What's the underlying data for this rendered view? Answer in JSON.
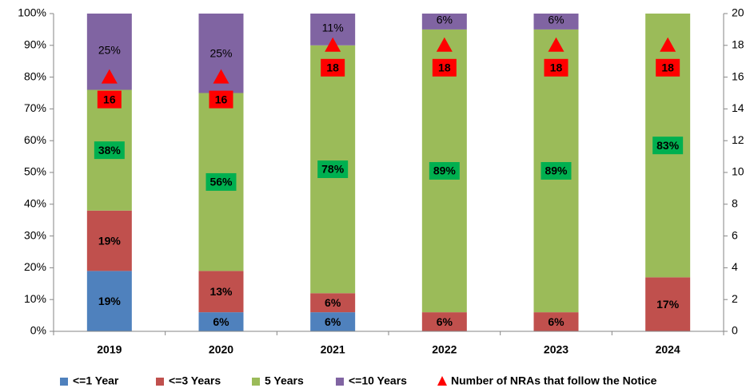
{
  "chart_data": {
    "type": "stacked_bar",
    "categories": [
      "2019",
      "2020",
      "2021",
      "2022",
      "2023",
      "2024"
    ],
    "series": [
      {
        "name": "<=1 Year",
        "color": "#4f81bd",
        "values": [
          19,
          6,
          6,
          null,
          null,
          null
        ],
        "value_labels": [
          "19%",
          "6%",
          "6%",
          null,
          null,
          null
        ]
      },
      {
        "name": "<=3 Years",
        "color": "#c0504d",
        "values": [
          19,
          13,
          6,
          6,
          6,
          17
        ],
        "value_labels": [
          "19%",
          "13%",
          "6%",
          "6%",
          "6%",
          "17%"
        ]
      },
      {
        "name": "5 Years",
        "color": "#9bbb59",
        "values": [
          38,
          56,
          78,
          89,
          89,
          83
        ],
        "value_labels": [
          "38%",
          "56%",
          "78%",
          "89%",
          "89%",
          "83%"
        ]
      },
      {
        "name": "<=10 Years",
        "color": "#8064a2",
        "values": [
          25,
          25,
          11,
          6,
          6,
          null
        ],
        "value_labels": [
          "25%",
          "25%",
          "11%",
          "6%",
          "6%",
          null
        ]
      },
      {
        "name": "Number of NRAs that follow the Notice",
        "color": "#ff0000",
        "axis": "y2",
        "marker": "triangle",
        "values": [
          16,
          16,
          18,
          18,
          18,
          18
        ]
      }
    ],
    "ylim": [
      0,
      100
    ],
    "yticks": [
      {
        "value": 0,
        "label": "0%"
      },
      {
        "value": 10,
        "label": "10%"
      },
      {
        "value": 20,
        "label": "20%"
      },
      {
        "value": 30,
        "label": "30%"
      },
      {
        "value": 40,
        "label": "40%"
      },
      {
        "value": 50,
        "label": "50%"
      },
      {
        "value": 60,
        "label": "60%"
      },
      {
        "value": 70,
        "label": "70%"
      },
      {
        "value": 80,
        "label": "80%"
      },
      {
        "value": 90,
        "label": "90%"
      },
      {
        "value": 100,
        "label": "100%"
      }
    ],
    "y2lim": [
      0,
      20
    ],
    "y2ticks": [
      0,
      2,
      4,
      6,
      8,
      10,
      12,
      14,
      16,
      18,
      20
    ],
    "legend": "bottom"
  }
}
